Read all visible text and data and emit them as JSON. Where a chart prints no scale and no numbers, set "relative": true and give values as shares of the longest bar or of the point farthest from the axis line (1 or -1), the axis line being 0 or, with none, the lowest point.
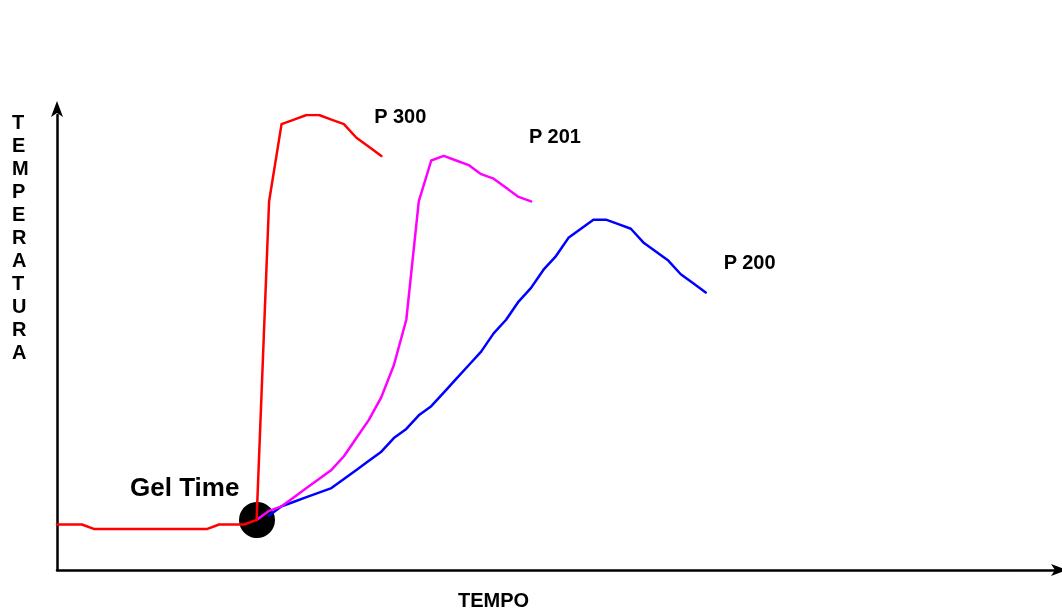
{
  "chart_data": {
    "type": "line",
    "relative": true,
    "xlabel": "TEMPO",
    "ylabel": "TEMPERATURA",
    "annotations": [
      "Gel Time"
    ],
    "legend": false,
    "grid": false,
    "marker": "none",
    "line_style": "solid",
    "categories": [
      null,
      null,
      null,
      null,
      null,
      null,
      null,
      null,
      null,
      null,
      null,
      null,
      null,
      null,
      null,
      null,
      null,
      null,
      null,
      null,
      null,
      null,
      null,
      null,
      null,
      null,
      null,
      null,
      null,
      null,
      null,
      null,
      null,
      null,
      null,
      null,
      null,
      null,
      null,
      null,
      null,
      null,
      null,
      null,
      null,
      null,
      null,
      null,
      null,
      null,
      null,
      null,
      null,
      null,
      null,
      null,
      null,
      null,
      null,
      null,
      null,
      null,
      null,
      null,
      null,
      null,
      null,
      null,
      null,
      null,
      null,
      null,
      null,
      null,
      null,
      null,
      null,
      null,
      null,
      null,
      null
    ],
    "series": [
      {
        "name": "P 200",
        "color": "#0000ff",
        "values": [
          null,
          null,
          null,
          null,
          null,
          null,
          null,
          null,
          null,
          null,
          null,
          null,
          null,
          null,
          null,
          null,
          null,
          0.12,
          0.14,
          0.15,
          0.16,
          0.17,
          0.18,
          0.2,
          0.22,
          0.24,
          0.26,
          0.29,
          0.31,
          0.34,
          0.36,
          0.39,
          0.42,
          0.45,
          0.48,
          0.52,
          0.55,
          0.59,
          0.62,
          0.66,
          0.69,
          0.73,
          0.75,
          0.77,
          0.77,
          0.76,
          0.75,
          0.72,
          0.7,
          0.68,
          0.65,
          0.63,
          0.61,
          null,
          null,
          null,
          null,
          null,
          null,
          null,
          null,
          null,
          null,
          null,
          null,
          null,
          null,
          null,
          null,
          null,
          null,
          null,
          null,
          null,
          null,
          null,
          null,
          null,
          null,
          null,
          null
        ]
      },
      {
        "name": "P 201",
        "color": "#ff00ff",
        "values": [
          null,
          null,
          null,
          null,
          null,
          null,
          null,
          null,
          null,
          null,
          null,
          null,
          null,
          null,
          null,
          null,
          0.11,
          0.13,
          0.14,
          0.16,
          0.18,
          0.2,
          0.22,
          0.25,
          0.29,
          0.33,
          0.38,
          0.45,
          0.55,
          0.81,
          0.9,
          0.91,
          0.9,
          0.89,
          0.87,
          0.86,
          0.84,
          0.82,
          0.81,
          null,
          null,
          null,
          null,
          null,
          null,
          null,
          null,
          null,
          null,
          null,
          null,
          null,
          null,
          null,
          null,
          null,
          null,
          null,
          null,
          null,
          null,
          null,
          null,
          null,
          null,
          null,
          null,
          null,
          null,
          null,
          null,
          null,
          null,
          null,
          null,
          null,
          null,
          null,
          null,
          null,
          null
        ]
      },
      {
        "name": "P 300",
        "color": "#ff0000",
        "values": [
          0.1,
          0.1,
          0.1,
          0.09,
          0.09,
          0.09,
          0.09,
          0.09,
          0.09,
          0.09,
          0.09,
          0.09,
          0.09,
          0.1,
          0.1,
          0.1,
          0.11,
          0.81,
          0.98,
          0.99,
          1,
          1,
          0.99,
          0.98,
          0.95,
          0.93,
          0.91,
          null,
          null,
          null,
          null,
          null,
          null,
          null,
          null,
          null,
          null,
          null,
          null,
          null,
          null,
          null,
          null,
          null,
          null,
          null,
          null,
          null,
          null,
          null,
          null,
          null,
          null,
          null,
          null,
          null,
          null,
          null,
          null,
          null,
          null,
          null,
          null,
          null,
          null,
          null,
          null,
          null,
          null,
          null,
          null,
          null,
          null,
          null,
          null,
          null,
          null,
          null,
          null,
          null,
          null
        ]
      }
    ]
  }
}
